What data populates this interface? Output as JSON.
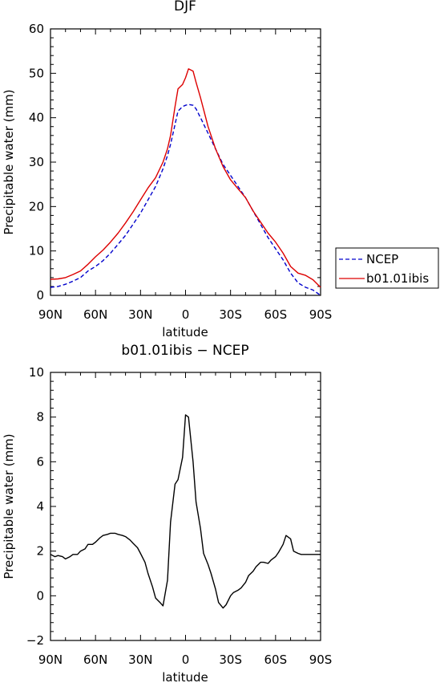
{
  "chart_data": [
    {
      "type": "line",
      "title": "DJF",
      "xlabel": "latitude",
      "ylabel": "Precipitable water (mm)",
      "xlim": [
        -90,
        90
      ],
      "ylim": [
        0,
        60
      ],
      "x_ticks": [
        -90,
        -60,
        -30,
        0,
        30,
        60,
        90
      ],
      "x_tick_labels": [
        "90N",
        "60N",
        "30N",
        "0",
        "30S",
        "60S",
        "90S"
      ],
      "y_ticks": [
        0,
        10,
        20,
        30,
        40,
        50,
        60
      ],
      "y_tick_labels": [
        "0",
        "10",
        "20",
        "30",
        "40",
        "50",
        "60"
      ],
      "legend": "right",
      "grid": false,
      "x": [
        -90,
        -85,
        -80,
        -75,
        -70,
        -65,
        -60,
        -55,
        -50,
        -45,
        -40,
        -35,
        -30,
        -25,
        -20,
        -15,
        -12,
        -10,
        -7,
        -5,
        -2,
        0,
        2,
        5,
        7,
        10,
        15,
        20,
        25,
        30,
        35,
        40,
        45,
        50,
        55,
        60,
        65,
        70,
        75,
        80,
        85,
        90
      ],
      "series": [
        {
          "name": "NCEP",
          "color": "#0000cc",
          "dash": true,
          "values": [
            1.8,
            2.0,
            2.5,
            3.2,
            4.0,
            5.5,
            6.5,
            7.8,
            9.5,
            11.5,
            13.5,
            16.0,
            18.5,
            21.5,
            24.5,
            28.5,
            31.5,
            34.0,
            38.5,
            41.5,
            42.5,
            42.8,
            43.0,
            42.8,
            42.0,
            40.0,
            36.5,
            33.0,
            29.5,
            27.0,
            24.5,
            22.0,
            19.0,
            16.0,
            13.0,
            10.5,
            8.0,
            5.0,
            2.8,
            1.8,
            1.2,
            0.0
          ]
        },
        {
          "name": "b01.01ibis",
          "color": "#dd0000",
          "dash": false,
          "values": [
            3.6,
            3.7,
            4.0,
            4.7,
            5.5,
            7.0,
            8.7,
            10.2,
            12.0,
            14.0,
            16.3,
            18.8,
            21.5,
            24.2,
            26.5,
            30.0,
            33.0,
            36.0,
            42.5,
            46.5,
            47.5,
            49.0,
            51.0,
            50.5,
            48.0,
            44.5,
            38.0,
            33.0,
            29.0,
            26.0,
            24.0,
            22.0,
            19.0,
            16.5,
            14.0,
            12.0,
            9.5,
            6.5,
            5.0,
            4.5,
            3.5,
            1.8
          ]
        }
      ]
    },
    {
      "type": "line",
      "title": "b01.01ibis − NCEP",
      "xlabel": "latitude",
      "ylabel": "Precipitable water (mm)",
      "xlim": [
        -90,
        90
      ],
      "ylim": [
        -2,
        10
      ],
      "x_ticks": [
        -90,
        -60,
        -30,
        0,
        30,
        60,
        90
      ],
      "x_tick_labels": [
        "90N",
        "60N",
        "30N",
        "0",
        "30S",
        "60S",
        "90S"
      ],
      "y_ticks": [
        -2,
        0,
        2,
        4,
        6,
        8,
        10
      ],
      "y_tick_labels": [
        "−2",
        "0",
        "2",
        "4",
        "6",
        "8",
        "10"
      ],
      "grid": false,
      "x": [
        -90,
        -87,
        -85,
        -82,
        -80,
        -77,
        -75,
        -72,
        -70,
        -67,
        -65,
        -62,
        -60,
        -57,
        -55,
        -52,
        -50,
        -47,
        -45,
        -42,
        -40,
        -37,
        -35,
        -32,
        -30,
        -27,
        -25,
        -22,
        -20,
        -17,
        -15,
        -12,
        -10,
        -7,
        -5,
        -2,
        0,
        2,
        5,
        7,
        10,
        12,
        15,
        17,
        20,
        22,
        25,
        27,
        30,
        32,
        35,
        37,
        40,
        42,
        45,
        47,
        50,
        52,
        55,
        57,
        60,
        62,
        65,
        67,
        70,
        72,
        75,
        77,
        80,
        82,
        85,
        87,
        90
      ],
      "series": [
        {
          "name": "",
          "color": "#000000",
          "dash": false,
          "values": [
            1.85,
            1.75,
            1.8,
            1.75,
            1.65,
            1.75,
            1.85,
            1.85,
            2.0,
            2.1,
            2.3,
            2.3,
            2.4,
            2.6,
            2.7,
            2.75,
            2.8,
            2.8,
            2.75,
            2.7,
            2.65,
            2.5,
            2.35,
            2.15,
            1.9,
            1.5,
            1.0,
            0.4,
            -0.1,
            -0.3,
            -0.45,
            0.7,
            3.3,
            5.0,
            5.2,
            6.2,
            8.1,
            8.0,
            6.0,
            4.2,
            3.0,
            1.9,
            1.4,
            1.0,
            0.3,
            -0.3,
            -0.55,
            -0.4,
            0.0,
            0.15,
            0.25,
            0.35,
            0.6,
            0.9,
            1.1,
            1.3,
            1.5,
            1.5,
            1.45,
            1.6,
            1.75,
            1.95,
            2.3,
            2.7,
            2.55,
            2.0,
            1.9,
            1.85,
            1.85,
            1.85,
            1.85,
            1.85,
            1.85
          ]
        }
      ]
    }
  ]
}
